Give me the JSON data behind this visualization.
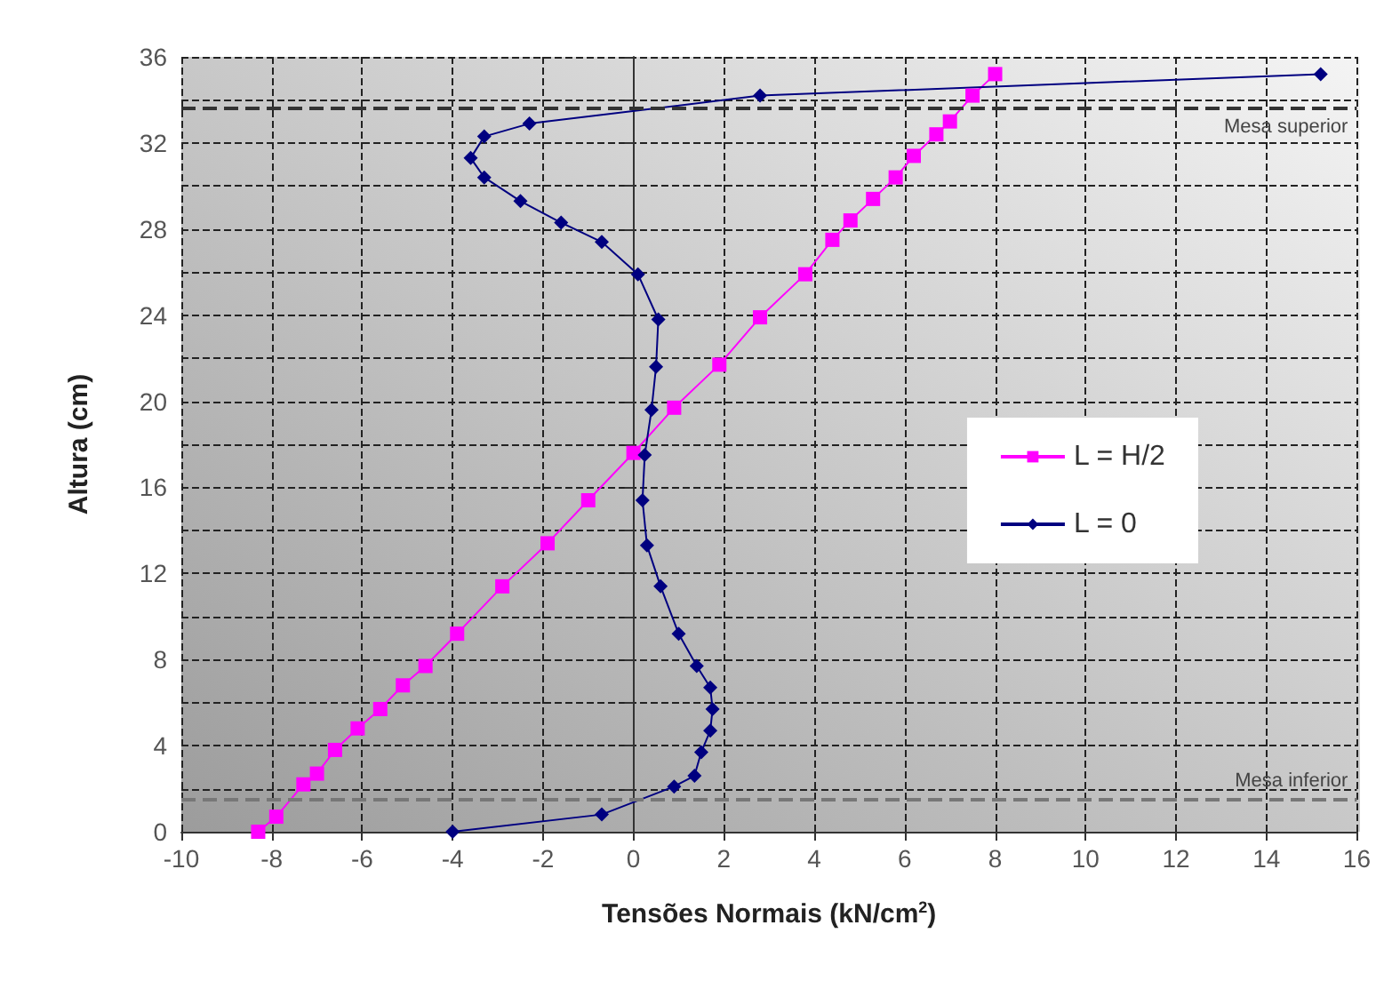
{
  "chart_data": {
    "type": "line",
    "xlabel": "Tensões Normais (kN/cm$^{2}$)",
    "ylabel": "Altura (cm)",
    "xlim": [
      -10,
      16
    ],
    "xticks": [
      -10,
      -8,
      -6,
      -4,
      -2,
      0,
      2,
      4,
      6,
      8,
      10,
      12,
      14,
      16
    ],
    "ylim": [
      0,
      36
    ],
    "yticks": [
      0,
      {
        "value": 2,
        "label": null
      },
      4,
      {
        "value": 6,
        "label": null
      },
      8,
      {
        "value": 10,
        "label": null
      },
      12,
      {
        "value": 14,
        "label": null
      },
      16,
      {
        "value": 18,
        "label": null
      },
      20,
      {
        "value": 22,
        "label": null
      },
      24,
      {
        "value": 26,
        "label": null
      },
      28,
      {
        "value": 30,
        "label": null
      },
      32,
      {
        "value": 34,
        "label": null
      },
      36
    ],
    "grid": true,
    "legend": "right",
    "ref_lines": [
      {
        "axis": "y",
        "value": 33.6,
        "label": "Mesa superior",
        "color": "#333333",
        "line_style": "dashed"
      },
      {
        "axis": "y",
        "value": 1.5,
        "label": "Mesa inferior",
        "color": "#777777",
        "line_style": "dashed"
      }
    ],
    "series": [
      {
        "name": "L = H/2",
        "color": "#ff00ff",
        "marker": "square",
        "x": [
          -8.3,
          -7.9,
          -7.3,
          -7.0,
          -6.6,
          -6.1,
          -5.6,
          -5.1,
          -4.6,
          -3.9,
          -2.9,
          -1.9,
          -1.0,
          0.0,
          0.9,
          1.9,
          2.8,
          3.8,
          4.4,
          4.8,
          5.3,
          5.8,
          6.2,
          6.7,
          7.0,
          7.5,
          8.0
        ],
        "values": [
          0,
          0.7,
          2.2,
          2.7,
          3.8,
          4.8,
          5.7,
          6.8,
          7.7,
          9.2,
          11.4,
          13.4,
          15.4,
          17.6,
          19.7,
          21.7,
          23.9,
          25.9,
          27.5,
          28.4,
          29.4,
          30.4,
          31.4,
          32.4,
          33.0,
          34.2,
          35.2
        ]
      },
      {
        "name": "L = 0",
        "color": "#000080",
        "marker": "diamond",
        "x": [
          -4.0,
          -0.7,
          0.9,
          1.35,
          1.5,
          1.7,
          1.75,
          1.7,
          1.4,
          1.0,
          0.6,
          0.3,
          0.2,
          0.25,
          0.4,
          0.5,
          0.55,
          0.1,
          -0.7,
          -1.6,
          -2.5,
          -3.3,
          -3.6,
          -3.3,
          -2.3,
          2.8,
          15.2
        ],
        "values": [
          0,
          0.8,
          2.1,
          2.6,
          3.7,
          4.7,
          5.7,
          6.7,
          7.7,
          9.2,
          11.4,
          13.3,
          15.4,
          17.5,
          19.6,
          21.6,
          23.8,
          25.9,
          27.4,
          28.3,
          29.3,
          30.4,
          31.3,
          32.3,
          32.9,
          34.2,
          35.2
        ]
      }
    ]
  }
}
